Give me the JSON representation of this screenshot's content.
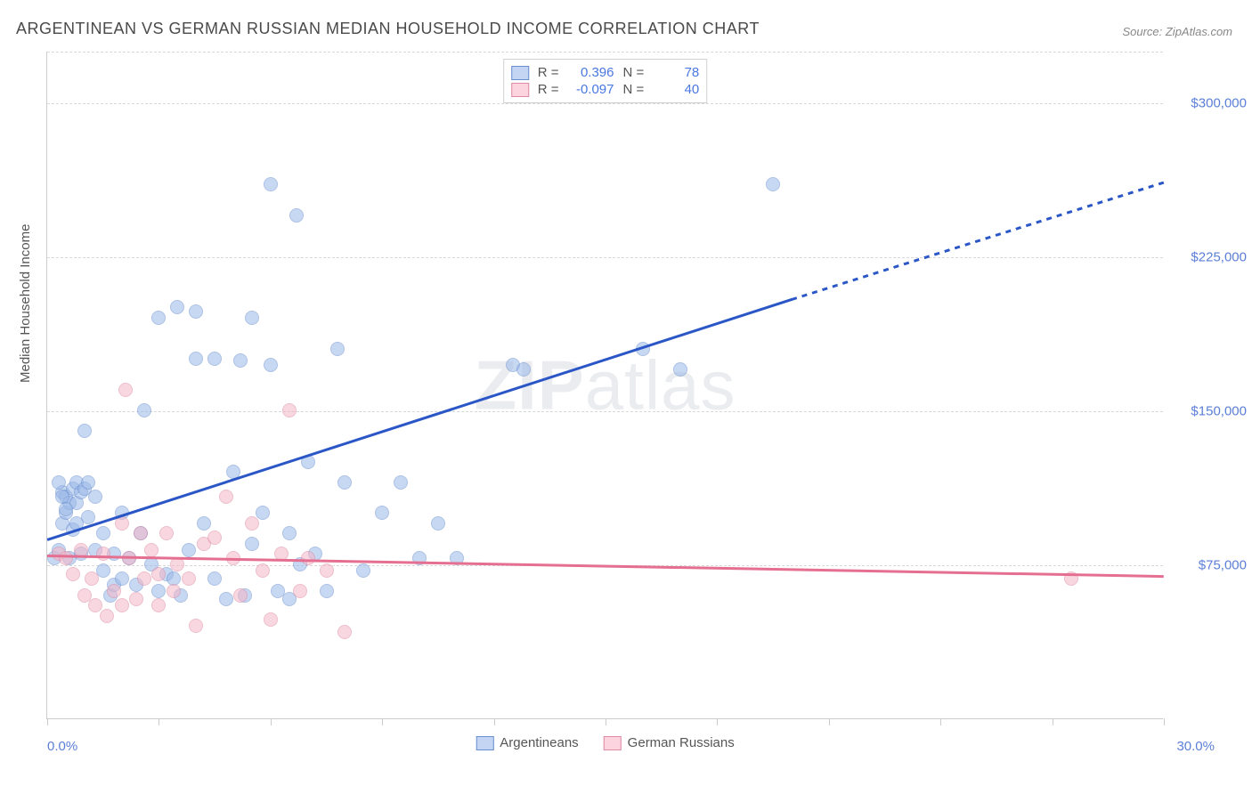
{
  "title": "ARGENTINEAN VS GERMAN RUSSIAN MEDIAN HOUSEHOLD INCOME CORRELATION CHART",
  "source_label": "Source: ZipAtlas.com",
  "watermark": "ZIPatlas",
  "y_axis_label": "Median Household Income",
  "chart": {
    "type": "scatter",
    "xlim": [
      0,
      30
    ],
    "ylim": [
      0,
      325000
    ],
    "x_min_label": "0.0%",
    "x_max_label": "30.0%",
    "x_ticks": [
      0,
      3,
      6,
      9,
      12,
      15,
      18,
      21,
      24,
      27,
      30
    ],
    "y_gridlines": [
      75000,
      150000,
      225000,
      300000
    ],
    "y_tick_labels": [
      "$75,000",
      "$150,000",
      "$225,000",
      "$300,000"
    ],
    "background_color": "#ffffff",
    "grid_color": "#d8d8d8",
    "axis_color": "#cccccc",
    "label_color": "#5b7fd6",
    "title_color": "#4a4a4a",
    "title_fontsize": 18,
    "tick_fontsize": 15,
    "marker_radius": 8,
    "marker_opacity": 0.55,
    "series": [
      {
        "name": "Argentineans",
        "legend_label": "Argentineans",
        "color_fill": "#9bb9e8",
        "color_stroke": "#6a8fd0",
        "trend_color": "#2a56c6",
        "R": 0.396,
        "N": 78,
        "trend": {
          "x1": 0,
          "y1": 88000,
          "x2_solid": 20,
          "y2_solid": 205000,
          "x2_dash": 30,
          "y2_dash": 262000
        },
        "points": [
          [
            0.2,
            78000
          ],
          [
            0.3,
            82000
          ],
          [
            0.4,
            95000
          ],
          [
            0.4,
            110000
          ],
          [
            0.5,
            100000
          ],
          [
            0.5,
            108000
          ],
          [
            0.6,
            105000
          ],
          [
            0.6,
            78000
          ],
          [
            0.7,
            112000
          ],
          [
            0.7,
            92000
          ],
          [
            0.8,
            115000
          ],
          [
            0.8,
            105000
          ],
          [
            0.9,
            110000
          ],
          [
            0.9,
            80000
          ],
          [
            1.0,
            112000
          ],
          [
            1.0,
            140000
          ],
          [
            1.1,
            115000
          ],
          [
            1.1,
            98000
          ],
          [
            1.3,
            108000
          ],
          [
            1.3,
            82000
          ],
          [
            1.5,
            90000
          ],
          [
            1.5,
            72000
          ],
          [
            1.7,
            60000
          ],
          [
            1.8,
            80000
          ],
          [
            1.8,
            65000
          ],
          [
            2.0,
            100000
          ],
          [
            2.0,
            68000
          ],
          [
            2.2,
            78000
          ],
          [
            2.4,
            65000
          ],
          [
            2.5,
            90000
          ],
          [
            2.6,
            150000
          ],
          [
            2.8,
            75000
          ],
          [
            3.0,
            62000
          ],
          [
            3.0,
            195000
          ],
          [
            3.2,
            70000
          ],
          [
            3.4,
            68000
          ],
          [
            3.5,
            200000
          ],
          [
            3.6,
            60000
          ],
          [
            3.8,
            82000
          ],
          [
            4.0,
            198000
          ],
          [
            4.0,
            175000
          ],
          [
            4.2,
            95000
          ],
          [
            4.5,
            68000
          ],
          [
            4.5,
            175000
          ],
          [
            4.8,
            58000
          ],
          [
            5.0,
            120000
          ],
          [
            5.2,
            174000
          ],
          [
            5.3,
            60000
          ],
          [
            5.5,
            195000
          ],
          [
            5.5,
            85000
          ],
          [
            5.8,
            100000
          ],
          [
            6.0,
            260000
          ],
          [
            6.0,
            172000
          ],
          [
            6.2,
            62000
          ],
          [
            6.5,
            90000
          ],
          [
            6.5,
            58000
          ],
          [
            6.7,
            245000
          ],
          [
            6.8,
            75000
          ],
          [
            7.0,
            125000
          ],
          [
            7.2,
            80000
          ],
          [
            7.5,
            62000
          ],
          [
            7.8,
            180000
          ],
          [
            8.0,
            115000
          ],
          [
            8.5,
            72000
          ],
          [
            9.0,
            100000
          ],
          [
            9.5,
            115000
          ],
          [
            10.0,
            78000
          ],
          [
            10.5,
            95000
          ],
          [
            11.0,
            78000
          ],
          [
            12.5,
            172000
          ],
          [
            12.8,
            170000
          ],
          [
            16.0,
            180000
          ],
          [
            17.0,
            170000
          ],
          [
            19.5,
            260000
          ],
          [
            0.3,
            115000
          ],
          [
            0.4,
            108000
          ],
          [
            0.5,
            102000
          ],
          [
            0.8,
            95000
          ]
        ]
      },
      {
        "name": "German Russians",
        "legend_label": "German Russians",
        "color_fill": "#f5b7c8",
        "color_stroke": "#e08aa3",
        "trend_color": "#e56f91",
        "R": -0.097,
        "N": 40,
        "trend": {
          "x1": 0,
          "y1": 80000,
          "x2_solid": 30,
          "y2_solid": 70000
        },
        "points": [
          [
            0.3,
            80000
          ],
          [
            0.5,
            78000
          ],
          [
            0.7,
            70000
          ],
          [
            0.9,
            82000
          ],
          [
            1.0,
            60000
          ],
          [
            1.2,
            68000
          ],
          [
            1.3,
            55000
          ],
          [
            1.5,
            80000
          ],
          [
            1.6,
            50000
          ],
          [
            1.8,
            62000
          ],
          [
            2.0,
            95000
          ],
          [
            2.0,
            55000
          ],
          [
            2.1,
            160000
          ],
          [
            2.2,
            78000
          ],
          [
            2.4,
            58000
          ],
          [
            2.5,
            90000
          ],
          [
            2.6,
            68000
          ],
          [
            2.8,
            82000
          ],
          [
            3.0,
            70000
          ],
          [
            3.0,
            55000
          ],
          [
            3.2,
            90000
          ],
          [
            3.4,
            62000
          ],
          [
            3.5,
            75000
          ],
          [
            3.8,
            68000
          ],
          [
            4.0,
            45000
          ],
          [
            4.2,
            85000
          ],
          [
            4.5,
            88000
          ],
          [
            4.8,
            108000
          ],
          [
            5.0,
            78000
          ],
          [
            5.2,
            60000
          ],
          [
            5.5,
            95000
          ],
          [
            5.8,
            72000
          ],
          [
            6.0,
            48000
          ],
          [
            6.3,
            80000
          ],
          [
            6.5,
            150000
          ],
          [
            6.8,
            62000
          ],
          [
            7.0,
            78000
          ],
          [
            7.5,
            72000
          ],
          [
            8.0,
            42000
          ],
          [
            27.5,
            68000
          ]
        ]
      }
    ]
  },
  "r_legend": {
    "rows": [
      {
        "swatch": "a",
        "R_label": "R =",
        "R_val": "0.396",
        "N_label": "N =",
        "N_val": "78"
      },
      {
        "swatch": "b",
        "R_label": "R =",
        "R_val": "-0.097",
        "N_label": "N =",
        "N_val": "40"
      }
    ]
  }
}
